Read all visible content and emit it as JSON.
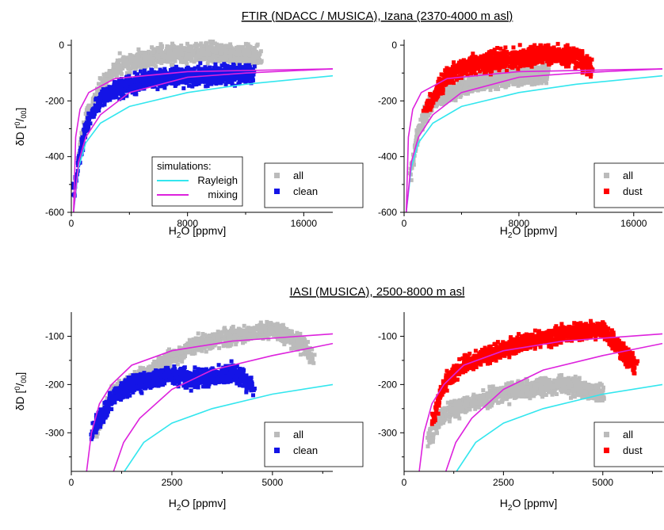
{
  "figure": {
    "title_top": "FTIR (NDACC / MUSICA), Izana (2370-4000 m asl)",
    "title_bottom": "IASI (MUSICA), 2500-8000 m asl"
  },
  "colors": {
    "all": "#bbbbbb",
    "clean": "#1414e6",
    "dust": "#ff0000",
    "rayleigh": "#33e6ee",
    "mixing": "#dd22dd"
  },
  "chart_data": [
    {
      "type": "scatter",
      "panel": "ftir-clean",
      "xlabel": "H2O [ppmv]",
      "ylabel": "δD [‰]",
      "xlim": [
        0,
        18000
      ],
      "ylim": [
        -600,
        20
      ],
      "xticks": [
        "0",
        "8000",
        "16000"
      ],
      "yticks": [
        "0",
        "-200",
        "-400",
        "-600"
      ],
      "legend": {
        "position": "bottom-right",
        "entries": [
          "all",
          "clean"
        ]
      },
      "simulations_legend": {
        "title": "simulations:",
        "entries": [
          "Rayleigh",
          "mixing"
        ]
      },
      "series": [
        {
          "name": "all",
          "color": "#bbbbbb",
          "region": "upper band of the cloud",
          "approx_points": [
            [
              500,
              -400
            ],
            [
              1000,
              -260
            ],
            [
              2000,
              -150
            ],
            [
              3000,
              -80
            ],
            [
              4000,
              -60
            ],
            [
              6000,
              -40
            ],
            [
              8000,
              -30
            ],
            [
              10000,
              -25
            ],
            [
              12000,
              -35
            ],
            [
              13000,
              -40
            ]
          ]
        },
        {
          "name": "clean",
          "color": "#1414e6",
          "region": "lower band of the cloud",
          "approx_points": [
            [
              200,
              -520
            ],
            [
              500,
              -420
            ],
            [
              1000,
              -290
            ],
            [
              2000,
              -190
            ],
            [
              3000,
              -160
            ],
            [
              4000,
              -140
            ],
            [
              6000,
              -120
            ],
            [
              8000,
              -110
            ],
            [
              10000,
              -105
            ],
            [
              12500,
              -100
            ]
          ]
        }
      ],
      "curves": [
        {
          "name": "Rayleigh",
          "approx_points": [
            [
              150,
              -600
            ],
            [
              500,
              -440
            ],
            [
              1000,
              -350
            ],
            [
              2000,
              -280
            ],
            [
              4000,
              -220
            ],
            [
              8000,
              -170
            ],
            [
              12000,
              -140
            ],
            [
              18000,
              -110
            ]
          ]
        },
        {
          "name": "mixing",
          "approx_points": [
            [
              150,
              -600
            ],
            [
              300,
              -330
            ],
            [
              600,
              -230
            ],
            [
              1200,
              -170
            ],
            [
              3000,
              -120
            ],
            [
              8000,
              -95
            ],
            [
              18000,
              -85
            ]
          ]
        },
        {
          "name": "mixing",
          "approx_points": [
            [
              150,
              -600
            ],
            [
              500,
              -420
            ],
            [
              1000,
              -330
            ],
            [
              2000,
              -250
            ],
            [
              4000,
              -170
            ],
            [
              8000,
              -115
            ],
            [
              12000,
              -100
            ],
            [
              18000,
              -85
            ]
          ]
        }
      ]
    },
    {
      "type": "scatter",
      "panel": "ftir-dust",
      "xlabel": "H2O [ppmv]",
      "ylabel": "",
      "xlim": [
        0,
        18000
      ],
      "ylim": [
        -600,
        20
      ],
      "xticks": [
        "0",
        "8000",
        "16000"
      ],
      "yticks": [
        "0",
        "-200",
        "-400",
        "-600"
      ],
      "legend": {
        "position": "bottom-right",
        "entries": [
          "all",
          "dust"
        ]
      },
      "series": [
        {
          "name": "all",
          "color": "#bbbbbb",
          "region": "full cloud",
          "approx_points": [
            [
              500,
              -450
            ],
            [
              1000,
              -300
            ],
            [
              2000,
              -200
            ],
            [
              4000,
              -150
            ],
            [
              6000,
              -120
            ],
            [
              10000,
              -100
            ]
          ]
        },
        {
          "name": "dust",
          "color": "#ff0000",
          "region": "upper band of the cloud",
          "approx_points": [
            [
              1500,
              -230
            ],
            [
              3000,
              -110
            ],
            [
              4000,
              -80
            ],
            [
              6000,
              -60
            ],
            [
              8000,
              -45
            ],
            [
              10000,
              -35
            ],
            [
              12000,
              -40
            ],
            [
              13000,
              -80
            ]
          ]
        }
      ],
      "curves": [
        {
          "name": "Rayleigh",
          "approx_points": [
            [
              150,
              -600
            ],
            [
              500,
              -440
            ],
            [
              1000,
              -350
            ],
            [
              2000,
              -280
            ],
            [
              4000,
              -220
            ],
            [
              8000,
              -170
            ],
            [
              12000,
              -140
            ],
            [
              18000,
              -110
            ]
          ]
        },
        {
          "name": "mixing",
          "approx_points": [
            [
              150,
              -600
            ],
            [
              300,
              -330
            ],
            [
              600,
              -230
            ],
            [
              1200,
              -170
            ],
            [
              3000,
              -120
            ],
            [
              8000,
              -95
            ],
            [
              18000,
              -85
            ]
          ]
        },
        {
          "name": "mixing",
          "approx_points": [
            [
              150,
              -600
            ],
            [
              500,
              -420
            ],
            [
              1000,
              -330
            ],
            [
              2000,
              -250
            ],
            [
              4000,
              -170
            ],
            [
              8000,
              -115
            ],
            [
              12000,
              -100
            ],
            [
              18000,
              -85
            ]
          ]
        }
      ]
    },
    {
      "type": "scatter",
      "panel": "iasi-clean",
      "xlabel": "H2O [ppmv]",
      "ylabel": "δD [‰]",
      "xlim": [
        0,
        6500
      ],
      "ylim": [
        -380,
        -50
      ],
      "xticks": [
        "0",
        "2500",
        "5000"
      ],
      "yticks": [
        "-100",
        "-200",
        "-300"
      ],
      "legend": {
        "position": "bottom-right",
        "entries": [
          "all",
          "clean"
        ]
      },
      "series": [
        {
          "name": "all",
          "color": "#bbbbbb",
          "region": "full cloud",
          "approx_points": [
            [
              600,
              -300
            ],
            [
              1000,
              -220
            ],
            [
              2000,
              -170
            ],
            [
              3000,
              -120
            ],
            [
              4000,
              -100
            ],
            [
              5000,
              -85
            ],
            [
              5800,
              -120
            ],
            [
              6000,
              -150
            ]
          ]
        },
        {
          "name": "clean",
          "color": "#1414e6",
          "region": "lower-left part of the cloud",
          "approx_points": [
            [
              500,
              -300
            ],
            [
              800,
              -260
            ],
            [
              1000,
              -230
            ],
            [
              1500,
              -200
            ],
            [
              2000,
              -190
            ],
            [
              2500,
              -180
            ],
            [
              3000,
              -190
            ],
            [
              3500,
              -185
            ],
            [
              4000,
              -175
            ],
            [
              4500,
              -200
            ]
          ]
        }
      ],
      "curves": [
        {
          "name": "mixing",
          "approx_points": [
            [
              380,
              -380
            ],
            [
              500,
              -300
            ],
            [
              700,
              -240
            ],
            [
              1000,
              -200
            ],
            [
              1500,
              -160
            ],
            [
              2500,
              -130
            ],
            [
              4000,
              -110
            ],
            [
              6500,
              -95
            ]
          ]
        },
        {
          "name": "mixing",
          "approx_points": [
            [
              1050,
              -380
            ],
            [
              1300,
              -320
            ],
            [
              1700,
              -270
            ],
            [
              2500,
              -210
            ],
            [
              3500,
              -170
            ],
            [
              5000,
              -140
            ],
            [
              6500,
              -115
            ]
          ]
        },
        {
          "name": "Rayleigh",
          "approx_points": [
            [
              1320,
              -380
            ],
            [
              1800,
              -320
            ],
            [
              2500,
              -280
            ],
            [
              3500,
              -250
            ],
            [
              5000,
              -220
            ],
            [
              6500,
              -200
            ]
          ]
        }
      ]
    },
    {
      "type": "scatter",
      "panel": "iasi-dust",
      "xlabel": "H2O [ppmv]",
      "ylabel": "",
      "xlim": [
        0,
        6500
      ],
      "ylim": [
        -380,
        -50
      ],
      "xticks": [
        "0",
        "2500",
        "5000"
      ],
      "yticks": [
        "-100",
        "-200",
        "-300"
      ],
      "legend": {
        "position": "bottom-right",
        "entries": [
          "all",
          "dust"
        ]
      },
      "series": [
        {
          "name": "all",
          "color": "#bbbbbb",
          "region": "full cloud",
          "approx_points": [
            [
              600,
              -310
            ],
            [
              1000,
              -260
            ],
            [
              2000,
              -230
            ],
            [
              3000,
              -210
            ],
            [
              4000,
              -200
            ],
            [
              5000,
              -220
            ]
          ]
        },
        {
          "name": "dust",
          "color": "#ff0000",
          "region": "upper part of the cloud",
          "approx_points": [
            [
              700,
              -280
            ],
            [
              1000,
              -200
            ],
            [
              1500,
              -160
            ],
            [
              2000,
              -140
            ],
            [
              3000,
              -115
            ],
            [
              4000,
              -95
            ],
            [
              5000,
              -85
            ],
            [
              5800,
              -160
            ]
          ]
        }
      ],
      "curves": [
        {
          "name": "mixing",
          "approx_points": [
            [
              380,
              -380
            ],
            [
              500,
              -300
            ],
            [
              700,
              -240
            ],
            [
              1000,
              -200
            ],
            [
              1500,
              -160
            ],
            [
              2500,
              -130
            ],
            [
              4000,
              -110
            ],
            [
              6500,
              -95
            ]
          ]
        },
        {
          "name": "mixing",
          "approx_points": [
            [
              1050,
              -380
            ],
            [
              1300,
              -320
            ],
            [
              1700,
              -270
            ],
            [
              2500,
              -210
            ],
            [
              3500,
              -170
            ],
            [
              5000,
              -140
            ],
            [
              6500,
              -115
            ]
          ]
        },
        {
          "name": "Rayleigh",
          "approx_points": [
            [
              1320,
              -380
            ],
            [
              1800,
              -320
            ],
            [
              2500,
              -280
            ],
            [
              3500,
              -250
            ],
            [
              5000,
              -220
            ],
            [
              6500,
              -200
            ]
          ]
        }
      ]
    }
  ]
}
